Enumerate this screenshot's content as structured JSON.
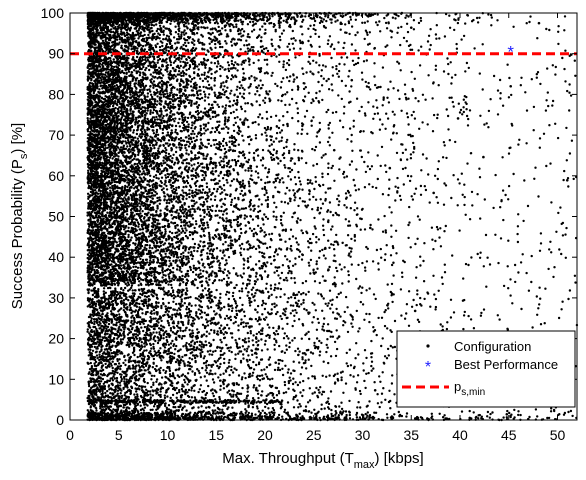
{
  "chart_data": {
    "type": "scatter",
    "title": "",
    "xlabel": "Max. Throughput (T",
    "xlabel_sub": "max",
    "xlabel_tail": ") [kbps]",
    "ylabel": "Success Probability (P",
    "ylabel_sub": "s",
    "ylabel_tail": ") [%]",
    "xlim": [
      0,
      52
    ],
    "ylim": [
      0,
      100
    ],
    "xticks": [
      0,
      5,
      10,
      15,
      20,
      25,
      30,
      35,
      40,
      45,
      50
    ],
    "yticks": [
      0,
      10,
      20,
      30,
      40,
      50,
      60,
      70,
      80,
      90,
      100
    ],
    "grid": false,
    "legend_position": "bottom-right",
    "series": [
      {
        "name": "Configuration",
        "marker": "dot",
        "color": "#000000",
        "description_range": {
          "x": [
            1.8,
            52
          ],
          "y": [
            0,
            100
          ]
        },
        "points": [
          [
            1.9,
            35.2
          ],
          [
            2.1,
            60.4
          ],
          [
            2.4,
            88.1
          ],
          [
            2.6,
            45.7
          ],
          [
            2.9,
            72.3
          ],
          [
            3.2,
            99.1
          ],
          [
            3.5,
            52.8
          ],
          [
            3.8,
            40.2
          ],
          [
            4.1,
            65.9
          ],
          [
            4.4,
            81.6
          ],
          [
            4.8,
            95.4
          ],
          [
            5.2,
            48.3
          ],
          [
            5.6,
            58.7
          ],
          [
            6.0,
            37.9
          ],
          [
            6.4,
            74.2
          ],
          [
            6.9,
            90.6
          ],
          [
            7.3,
            55.1
          ],
          [
            7.8,
            44.6
          ],
          [
            8.2,
            68.4
          ],
          [
            8.7,
            99.6
          ],
          [
            9.2,
            50.3
          ],
          [
            9.8,
            77.8
          ],
          [
            10.4,
            62.1
          ],
          [
            11.0,
            42.5
          ],
          [
            11.7,
            85.2
          ],
          [
            12.5,
            53.9
          ],
          [
            13.3,
            70.6
          ],
          [
            14.2,
            98.3
          ],
          [
            15.1,
            46.8
          ],
          [
            16.1,
            60.2
          ],
          [
            17.2,
            79.4
          ],
          [
            18.4,
            56.3
          ],
          [
            19.6,
            93.1
          ],
          [
            20.9,
            58.4
          ],
          [
            22.3,
            72.7
          ],
          [
            23.8,
            99.2
          ],
          [
            25.4,
            51.6
          ],
          [
            27.1,
            66.3
          ],
          [
            28.9,
            83.5
          ],
          [
            30.8,
            47.2
          ],
          [
            32.8,
            61.9
          ],
          [
            35.0,
            96.4
          ],
          [
            37.3,
            55.8
          ],
          [
            39.8,
            74.1
          ],
          [
            42.4,
            64.6
          ],
          [
            45.2,
            82.0
          ],
          [
            48.1,
            97.5
          ],
          [
            51.0,
            58.9
          ],
          [
            2.2,
            15.4
          ],
          [
            3.1,
            8.2
          ],
          [
            4.3,
            22.6
          ],
          [
            5.5,
            3.1
          ],
          [
            6.8,
            28.7
          ],
          [
            8.1,
            12.9
          ],
          [
            9.6,
            18.3
          ],
          [
            11.4,
            5.6
          ],
          [
            13.5,
            25.2
          ],
          [
            15.8,
            9.7
          ],
          [
            18.3,
            31.4
          ],
          [
            21.1,
            14.1
          ],
          [
            24.2,
            2.2
          ],
          [
            27.6,
            20.5
          ],
          [
            31.3,
            7.3
          ],
          [
            35.4,
            26.8
          ],
          [
            39.9,
            11.6
          ],
          [
            44.8,
            1.4
          ],
          [
            50.1,
            17.2
          ],
          [
            2.0,
            4.6
          ],
          [
            7.5,
            4.4
          ],
          [
            12.0,
            4.5
          ],
          [
            16.5,
            4.3
          ],
          [
            20.5,
            4.4
          ],
          [
            26.0,
            0.4
          ],
          [
            33.0,
            0.3
          ],
          [
            41.0,
            0.5
          ],
          [
            47.0,
            0.2
          ]
        ]
      },
      {
        "name": "Best Performance",
        "marker": "asterisk",
        "color": "#1f1fff",
        "points": [
          [
            45.2,
            90.8
          ]
        ]
      },
      {
        "name": "p",
        "name_sub": "s,min",
        "marker": "dashed-line",
        "color": "#ff0000",
        "y": 90
      }
    ]
  }
}
